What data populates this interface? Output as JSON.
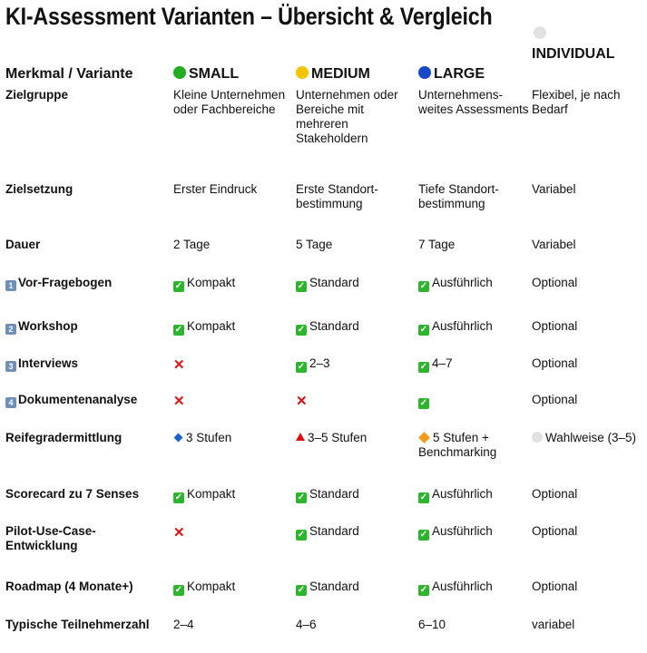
{
  "title": "KI-Assessment Varianten – Übersicht & Vergleich",
  "header": {
    "label": "Merkmal / Variante",
    "variants": [
      {
        "name": "SMALL",
        "icon": "green-circle-icon",
        "color": "#1fae1f"
      },
      {
        "name": "MEDIUM",
        "icon": "yellow-circle-icon",
        "color": "#f5c400"
      },
      {
        "name": "LARGE",
        "icon": "blue-circle-icon",
        "color": "#1a47c8"
      },
      {
        "name": "INDIVIDUAL",
        "icon": "white-circle-icon",
        "color": "#e2e2e2"
      }
    ]
  },
  "rows": [
    {
      "label": "Zielgruppe",
      "cells": [
        {
          "text": "Kleine Unternehmen oder Fachbereiche"
        },
        {
          "text": "Unternehmen oder Bereiche mit mehreren Stakeholdern"
        },
        {
          "text": "Unternehmens-weites Assessments"
        },
        {
          "text": "Flexibel, je nach Bedarf"
        }
      ]
    },
    {
      "label": "Zielsetzung",
      "cells": [
        {
          "text": "Erster Eindruck"
        },
        {
          "text": "Erste Standort-bestimmung"
        },
        {
          "text": "Tiefe Standort-bestimmung"
        },
        {
          "text": "Variabel"
        }
      ]
    },
    {
      "label": "Dauer",
      "cells": [
        {
          "text": "2 Tage"
        },
        {
          "text": "5 Tage"
        },
        {
          "text": "7 Tage"
        },
        {
          "text": "Variabel"
        }
      ]
    },
    {
      "label": "Vor-Fragebogen",
      "badge": "1",
      "cells": [
        {
          "icon": "check",
          "text": "Kompakt"
        },
        {
          "icon": "check",
          "text": "Standard"
        },
        {
          "icon": "check",
          "text": "Ausführlich"
        },
        {
          "text": "Optional"
        }
      ]
    },
    {
      "label": "Workshop",
      "badge": "2",
      "cells": [
        {
          "icon": "check",
          "text": "Kompakt"
        },
        {
          "icon": "check",
          "text": "Standard"
        },
        {
          "icon": "check",
          "text": "Ausführlich"
        },
        {
          "text": "Optional"
        }
      ]
    },
    {
      "label": "Interviews",
      "badge": "3",
      "cells": [
        {
          "icon": "cross"
        },
        {
          "icon": "check",
          "text": "2–3"
        },
        {
          "icon": "check",
          "text": "4–7"
        },
        {
          "text": "Optional"
        }
      ]
    },
    {
      "label": "Dokumentenanalyse",
      "badge": "4",
      "cells": [
        {
          "icon": "cross"
        },
        {
          "icon": "cross"
        },
        {
          "icon": "check"
        },
        {
          "text": "Optional"
        }
      ]
    },
    {
      "label": "Reifegradermittlung",
      "cells": [
        {
          "icon": "blue-diamond",
          "text": "3 Stufen"
        },
        {
          "icon": "red-triangle",
          "text": "3–5 Stufen"
        },
        {
          "icon": "orange-diamond",
          "text": "5 Stufen + Benchmarking"
        },
        {
          "icon": "white-circle",
          "text": "Wahlweise (3–5)"
        }
      ]
    },
    {
      "label": "Scorecard zu 7 Senses",
      "cells": [
        {
          "icon": "check",
          "text": "Kompakt"
        },
        {
          "icon": "check",
          "text": "Standard"
        },
        {
          "icon": "check",
          "text": "Ausführlich"
        },
        {
          "text": "Optional"
        }
      ]
    },
    {
      "label": "Pilot-Use-Case-Entwicklung",
      "cells": [
        {
          "icon": "cross"
        },
        {
          "icon": "check",
          "text": "Standard"
        },
        {
          "icon": "check",
          "text": "Ausführlich"
        },
        {
          "text": "Optional"
        }
      ]
    },
    {
      "label": "Roadmap (4 Monate+)",
      "cells": [
        {
          "icon": "check",
          "text": "Kompakt"
        },
        {
          "icon": "check",
          "text": "Standard"
        },
        {
          "icon": "check",
          "text": "Ausführlich"
        },
        {
          "text": "Optional"
        }
      ]
    },
    {
      "label": "Typische Teilnehmerzahl",
      "cells": [
        {
          "text": "2–4"
        },
        {
          "text": "4–6"
        },
        {
          "text": "6–10"
        },
        {
          "text": "variabel"
        }
      ]
    }
  ]
}
